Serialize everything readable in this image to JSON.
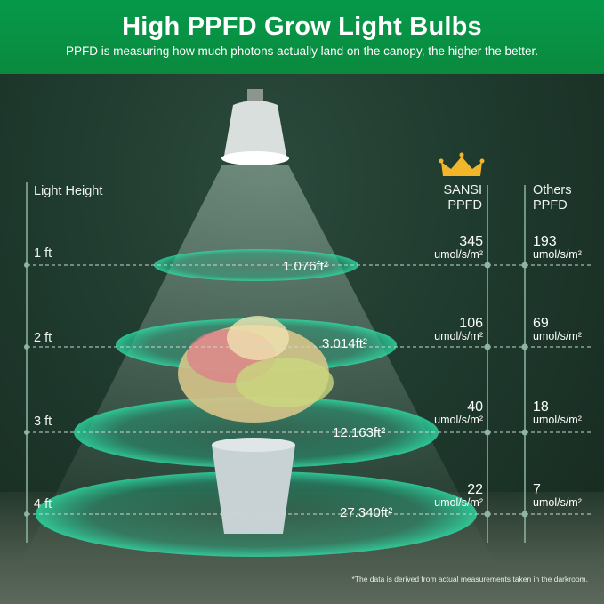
{
  "header": {
    "title": "High PPFD Grow Light Bulbs",
    "subtitle": "PPFD is measuring how much photons actually land on the canopy, the higher the better."
  },
  "columns": {
    "height_label": "Light Height",
    "sansi_label_1": "SANSI",
    "sansi_label_2": "PPFD",
    "others_label_1": "Others",
    "others_label_2": "PPFD"
  },
  "unit": "umol/s/m²",
  "rows": [
    {
      "height": "1 ft",
      "area": "1.076ft²",
      "sansi": "345",
      "others": "193"
    },
    {
      "height": "2 ft",
      "area": "3.014ft²",
      "sansi": "106",
      "others": "69"
    },
    {
      "height": "3 ft",
      "area": "12.163ft²",
      "sansi": "40",
      "others": "18"
    },
    {
      "height": "4 ft",
      "area": "27.340ft²",
      "sansi": "22",
      "others": "7"
    }
  ],
  "footnote": "*The data is derived from actual measurements taken in the darkroom.",
  "colors": {
    "header": "#06994a",
    "ring": "#1fbf8f",
    "line": "#8fb5a2"
  },
  "icons": [
    "crown-icon",
    "bulb-icon",
    "plant-image"
  ]
}
